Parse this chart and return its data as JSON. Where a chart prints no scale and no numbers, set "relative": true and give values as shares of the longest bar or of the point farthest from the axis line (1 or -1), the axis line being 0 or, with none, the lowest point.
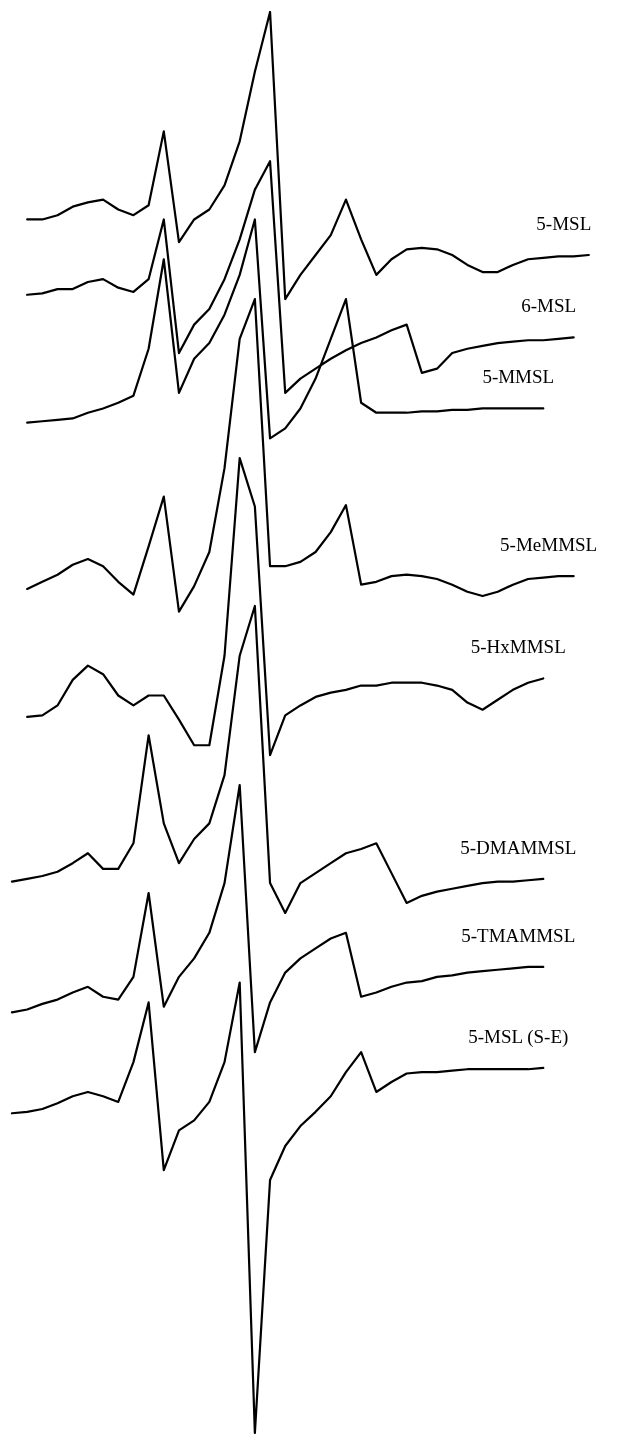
{
  "chart_data": {
    "type": "line",
    "relative": true,
    "marker": "none",
    "line_style": "solid",
    "categories": [
      null,
      null,
      null,
      null,
      null,
      null,
      null,
      null,
      null,
      null,
      null,
      null,
      null,
      null,
      null,
      null,
      null,
      null,
      null,
      null,
      null,
      null,
      null,
      null,
      null,
      null,
      null,
      null,
      null,
      null,
      null,
      null,
      null,
      null,
      null,
      null,
      null,
      null,
      null,
      null
    ],
    "series": [
      {
        "name": "5-MSL",
        "color": "#000000",
        "values": [
          null,
          0.854,
          0.854,
          0.857,
          0.863,
          0.866,
          0.868,
          0.861,
          0.857,
          0.864,
          0.916,
          0.838,
          0.854,
          0.861,
          0.878,
          0.909,
          0.958,
          1,
          0.798,
          0.815,
          0.829,
          0.843,
          0.868,
          0.84,
          0.815,
          0.826,
          0.833,
          0.834,
          0.833,
          0.829,
          0.822,
          0.817,
          0.817,
          0.822,
          0.826,
          0.827,
          0.828,
          0.828,
          0.829,
          null
        ]
      },
      {
        "name": "6-MSL",
        "color": "#000000",
        "values": [
          null,
          0.801,
          0.802,
          0.805,
          0.805,
          0.81,
          0.812,
          0.806,
          0.803,
          0.812,
          0.854,
          0.76,
          0.78,
          0.791,
          0.812,
          0.84,
          0.875,
          0.895,
          0.732,
          0.742,
          0.749,
          0.756,
          0.762,
          0.767,
          0.771,
          0.776,
          0.78,
          0.746,
          0.749,
          0.76,
          0.763,
          0.765,
          0.767,
          0.768,
          0.769,
          0.769,
          0.77,
          0.771,
          null,
          null
        ]
      },
      {
        "name": "5-MMSL",
        "color": "#000000",
        "values": [
          null,
          0.711,
          0.712,
          0.713,
          0.714,
          0.718,
          0.721,
          0.725,
          0.73,
          0.763,
          0.826,
          0.732,
          0.756,
          0.767,
          0.787,
          0.815,
          0.854,
          0.7,
          0.707,
          0.721,
          0.742,
          0.77,
          0.798,
          0.725,
          0.718,
          0.718,
          0.718,
          0.719,
          0.719,
          0.72,
          0.72,
          0.721,
          0.721,
          0.721,
          0.721,
          0.721,
          null,
          null,
          null,
          null
        ]
      },
      {
        "name": "5-MeMMSL",
        "color": "#000000",
        "values": [
          null,
          0.594,
          0.599,
          0.604,
          0.611,
          0.615,
          0.61,
          0.599,
          0.59,
          0.624,
          0.659,
          0.578,
          0.596,
          0.62,
          0.679,
          0.77,
          0.798,
          0.61,
          0.61,
          0.613,
          0.62,
          0.634,
          0.653,
          0.597,
          0.599,
          0.603,
          0.604,
          0.603,
          0.601,
          0.597,
          0.592,
          0.589,
          0.592,
          0.597,
          0.601,
          0.602,
          0.603,
          0.603,
          null,
          null
        ]
      },
      {
        "name": "5-HxMMSL",
        "color": "#000000",
        "values": [
          null,
          0.504,
          0.505,
          0.512,
          0.53,
          0.54,
          0.534,
          0.519,
          0.512,
          0.519,
          0.519,
          0.502,
          0.484,
          0.484,
          0.547,
          0.686,
          0.652,
          0.477,
          0.505,
          0.512,
          0.518,
          0.521,
          0.523,
          0.526,
          0.526,
          0.528,
          0.528,
          0.528,
          0.526,
          0.523,
          0.514,
          0.509,
          0.516,
          0.523,
          0.528,
          0.531,
          null,
          null,
          null,
          null
        ]
      },
      {
        "name": "5-DMAMMSL",
        "color": "#000000",
        "values": [
          0.388,
          0.39,
          0.392,
          0.395,
          0.401,
          0.408,
          0.397,
          0.397,
          0.415,
          0.491,
          0.429,
          0.401,
          0.418,
          0.429,
          0.463,
          0.547,
          0.582,
          0.387,
          0.366,
          0.387,
          0.394,
          0.401,
          0.408,
          0.411,
          0.415,
          0.394,
          0.373,
          0.378,
          0.381,
          0.383,
          0.385,
          0.387,
          0.388,
          0.388,
          0.389,
          0.39,
          null,
          null,
          null,
          null
        ]
      },
      {
        "name": "5-TMAMMSL",
        "color": "#000000",
        "values": [
          0.296,
          0.298,
          0.302,
          0.305,
          0.31,
          0.314,
          0.307,
          0.305,
          0.321,
          0.38,
          0.3,
          0.321,
          0.334,
          0.352,
          0.387,
          0.456,
          0.268,
          0.303,
          0.324,
          0.334,
          0.341,
          0.348,
          0.352,
          0.307,
          0.31,
          0.314,
          0.317,
          0.318,
          0.321,
          0.322,
          0.324,
          0.325,
          0.326,
          0.327,
          0.328,
          0.328,
          null,
          null,
          null,
          null
        ]
      },
      {
        "name": "5-MSL (S-E)",
        "color": "#000000",
        "values": [
          0.225,
          0.226,
          0.228,
          0.232,
          0.237,
          0.24,
          0.237,
          0.233,
          0.261,
          0.303,
          0.185,
          0.213,
          0.22,
          0.233,
          0.261,
          0.317,
          0,
          0.178,
          0.202,
          0.216,
          0.226,
          0.237,
          0.254,
          0.268,
          0.24,
          0.247,
          0.253,
          0.254,
          0.254,
          0.255,
          0.256,
          0.256,
          0.256,
          0.256,
          0.256,
          0.257,
          null,
          null,
          null,
          null
        ]
      }
    ]
  }
}
